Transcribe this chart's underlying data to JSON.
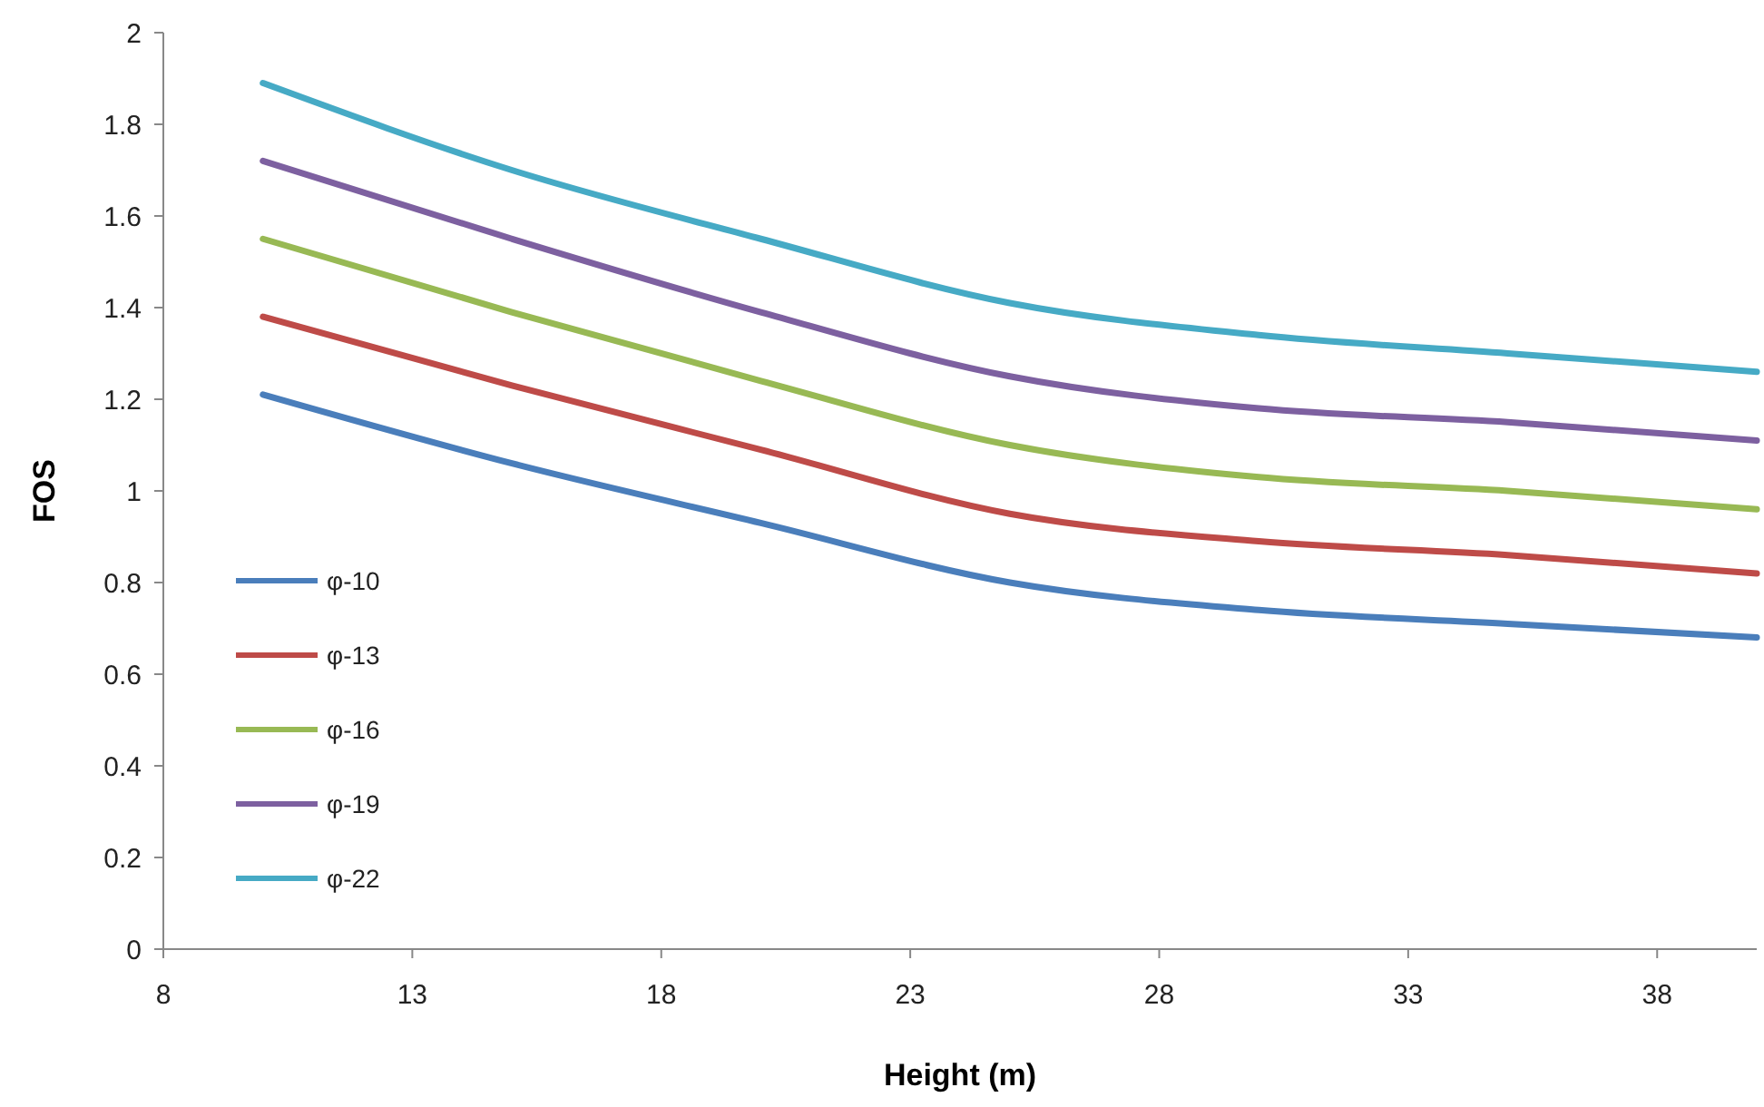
{
  "chart_data": {
    "type": "line",
    "xlabel": "Height (m)",
    "ylabel": "FOS",
    "x": [
      10,
      15,
      20,
      25,
      30,
      35,
      40
    ],
    "xlim": [
      8,
      40
    ],
    "xticks": [
      8,
      13,
      18,
      23,
      28,
      33,
      38
    ],
    "ylim": [
      0,
      2
    ],
    "yticks": [
      0,
      0.2,
      0.4,
      0.6,
      0.8,
      1,
      1.2,
      1.4,
      1.6,
      1.8,
      2
    ],
    "grid": false,
    "legend": "bottom left",
    "marker": "none",
    "line_style": "solid",
    "series": [
      {
        "name": "φ-10",
        "color": "#4a7ebb",
        "values": [
          1.21,
          1.06,
          0.93,
          0.8,
          0.74,
          0.71,
          0.68
        ]
      },
      {
        "name": "φ-13",
        "color": "#be4b48",
        "values": [
          1.38,
          1.23,
          1.09,
          0.95,
          0.89,
          0.86,
          0.82
        ]
      },
      {
        "name": "φ-16",
        "color": "#98b954",
        "values": [
          1.55,
          1.39,
          1.24,
          1.1,
          1.03,
          1.0,
          0.96
        ]
      },
      {
        "name": "φ-19",
        "color": "#7d60a0",
        "values": [
          1.72,
          1.55,
          1.39,
          1.25,
          1.18,
          1.15,
          1.11
        ]
      },
      {
        "name": "φ-22",
        "color": "#46aac5",
        "values": [
          1.89,
          1.7,
          1.55,
          1.41,
          1.34,
          1.3,
          1.26
        ]
      }
    ]
  }
}
